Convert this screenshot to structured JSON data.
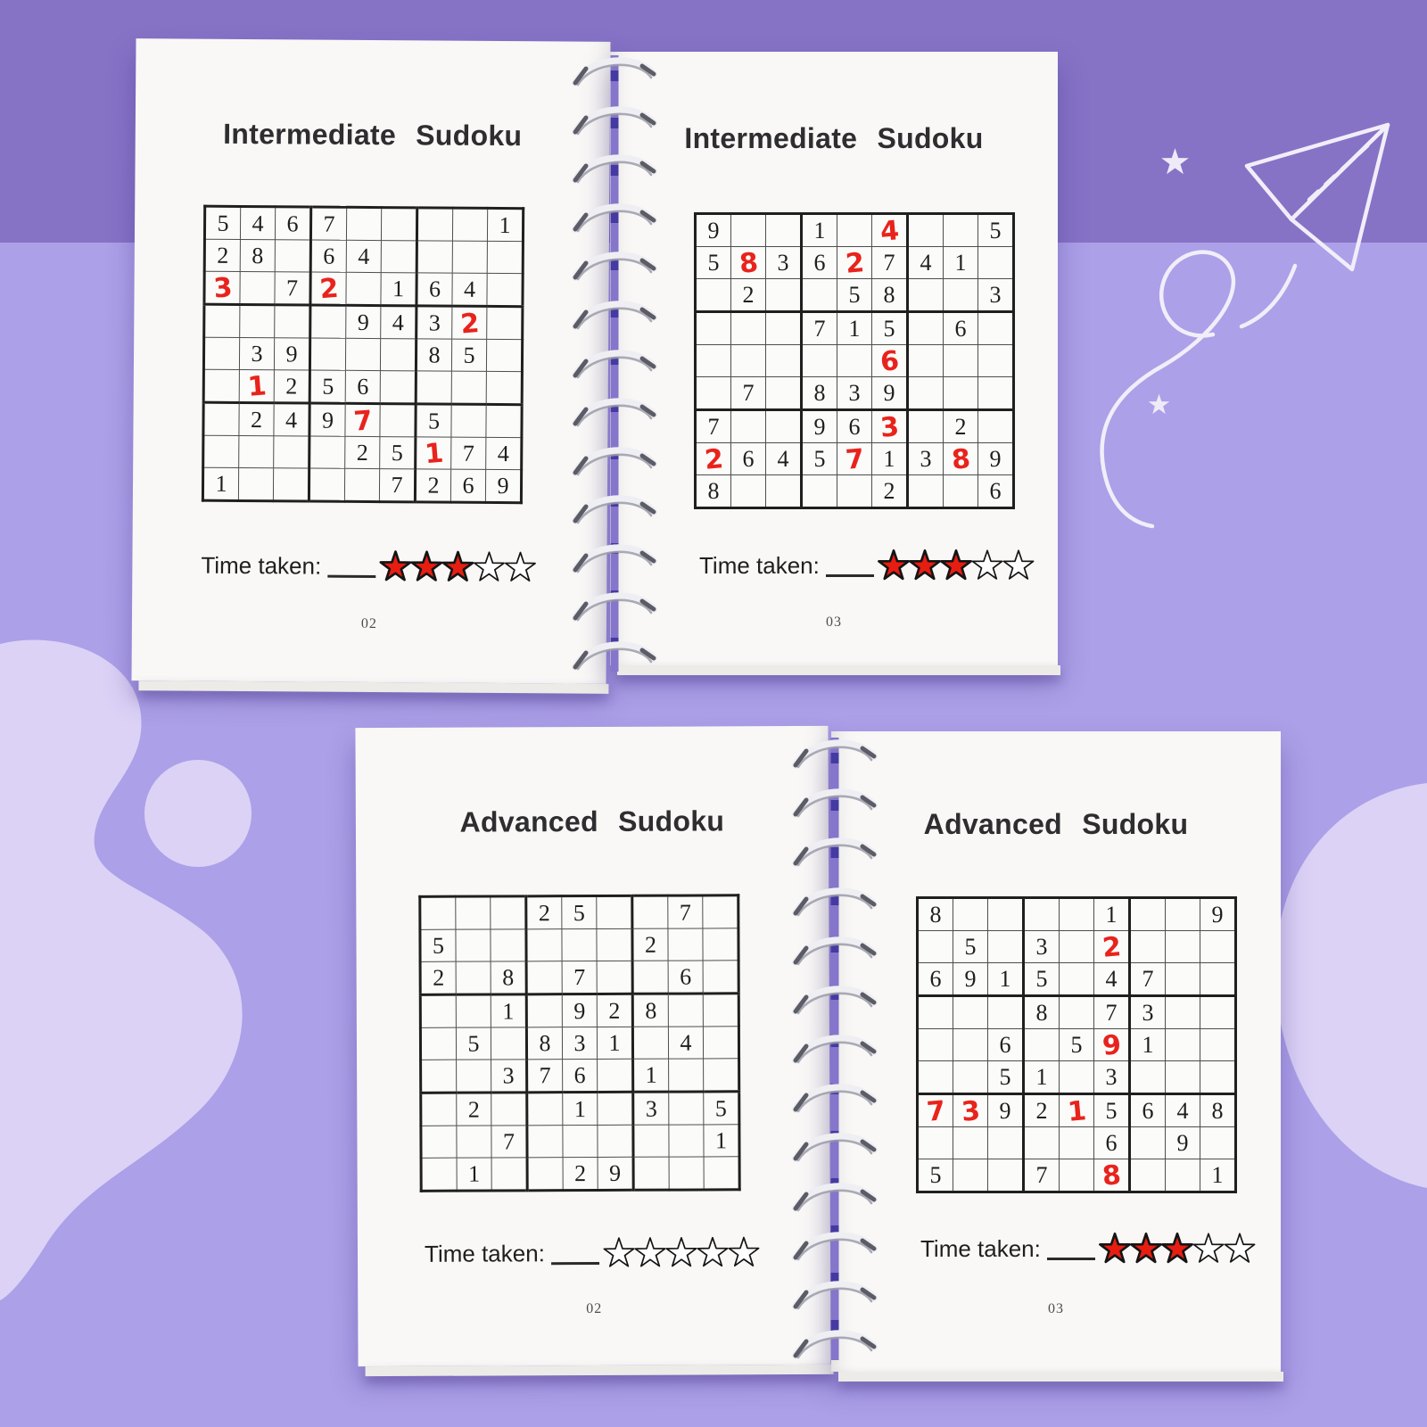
{
  "colors": {
    "background_top_band": "#8673c6",
    "background_main": "#aca0e8",
    "blob": "#dcd2f6",
    "page": "#f9f8f6",
    "grid_line_thin": "#4d4d4d",
    "grid_line_thick": "#1f1f1f",
    "printed_digit": "#1e1e1e",
    "handwritten_red": "#e8231c",
    "star_filled": "#e81d12",
    "star_outline": "#141414",
    "doodle": "#f2eef9"
  },
  "decor_icons": [
    "paper-plane-doodle",
    "swirl-trail-doodle",
    "sparkle-star-doodle",
    "blob-shape"
  ],
  "books": [
    {
      "name": "intermediate-sudoku-spread",
      "pages": [
        {
          "title": "Intermediate Sudoku",
          "page_number": "02",
          "time_label": "Time taken:",
          "stars_filled": 3,
          "stars_total": 5,
          "grid": [
            [
              "5",
              "4",
              "6",
              "7",
              "",
              "",
              "",
              "",
              "1"
            ],
            [
              "2",
              "8",
              "",
              "6",
              "4",
              "",
              "",
              "",
              ""
            ],
            [
              "3",
              "",
              "7",
              "2",
              "",
              "1",
              "6",
              "4",
              ""
            ],
            [
              "",
              "",
              "",
              "",
              "9",
              "4",
              "3",
              "2",
              ""
            ],
            [
              "",
              "3",
              "9",
              "",
              "",
              "",
              "8",
              "5",
              ""
            ],
            [
              "",
              "1",
              "2",
              "5",
              "6",
              "",
              "",
              "",
              ""
            ],
            [
              "",
              "2",
              "4",
              "9",
              "7",
              "",
              "5",
              "",
              ""
            ],
            [
              "",
              "",
              "",
              "",
              "2",
              "5",
              "1",
              "7",
              "4"
            ],
            [
              "1",
              "",
              "",
              "",
              "",
              "7",
              "2",
              "6",
              "9"
            ]
          ],
          "red_cells": [
            [
              2,
              0
            ],
            [
              2,
              3
            ],
            [
              3,
              7
            ],
            [
              5,
              1
            ],
            [
              6,
              4
            ],
            [
              7,
              6
            ]
          ]
        },
        {
          "title": "Intermediate Sudoku",
          "page_number": "03",
          "time_label": "Time taken:",
          "stars_filled": 3,
          "stars_total": 5,
          "grid": [
            [
              "9",
              "",
              "",
              "1",
              "",
              "4",
              "",
              "",
              "5"
            ],
            [
              "5",
              "8",
              "3",
              "6",
              "2",
              "7",
              "4",
              "1",
              ""
            ],
            [
              "",
              "2",
              "",
              "",
              "5",
              "8",
              "",
              "",
              "3"
            ],
            [
              "",
              "",
              "",
              "7",
              "1",
              "5",
              "",
              "6",
              ""
            ],
            [
              "",
              "",
              "",
              "",
              "",
              "6",
              "",
              "",
              ""
            ],
            [
              "",
              "7",
              "",
              "8",
              "3",
              "9",
              "",
              "",
              ""
            ],
            [
              "7",
              "",
              "",
              "9",
              "6",
              "3",
              "",
              "2",
              ""
            ],
            [
              "2",
              "6",
              "4",
              "5",
              "7",
              "1",
              "3",
              "8",
              "9"
            ],
            [
              "8",
              "",
              "",
              "",
              "",
              "2",
              "",
              "",
              "6"
            ]
          ],
          "red_cells": [
            [
              0,
              5
            ],
            [
              1,
              1
            ],
            [
              1,
              4
            ],
            [
              4,
              5
            ],
            [
              6,
              5
            ],
            [
              7,
              0
            ],
            [
              7,
              4
            ],
            [
              7,
              7
            ]
          ]
        }
      ]
    },
    {
      "name": "advanced-sudoku-spread",
      "pages": [
        {
          "title": "Advanced Sudoku",
          "page_number": "02",
          "time_label": "Time taken:",
          "stars_filled": 0,
          "stars_total": 5,
          "grid": [
            [
              "",
              "",
              "",
              "2",
              "5",
              "",
              "",
              "7",
              ""
            ],
            [
              "5",
              "",
              "",
              "",
              "",
              "",
              "2",
              "",
              ""
            ],
            [
              "2",
              "",
              "8",
              "",
              "7",
              "",
              "",
              "6",
              ""
            ],
            [
              "",
              "",
              "1",
              "",
              "9",
              "2",
              "8",
              "",
              ""
            ],
            [
              "",
              "5",
              "",
              "8",
              "3",
              "1",
              "",
              "4",
              ""
            ],
            [
              "",
              "",
              "3",
              "7",
              "6",
              "",
              "1",
              "",
              ""
            ],
            [
              "",
              "2",
              "",
              "",
              "1",
              "",
              "3",
              "",
              "5"
            ],
            [
              "",
              "",
              "7",
              "",
              "",
              "",
              "",
              "",
              "1"
            ],
            [
              "",
              "1",
              "",
              "",
              "2",
              "9",
              "",
              "",
              ""
            ]
          ],
          "red_cells": []
        },
        {
          "title": "Advanced Sudoku",
          "page_number": "03",
          "time_label": "Time taken:",
          "stars_filled": 3,
          "stars_total": 5,
          "grid": [
            [
              "8",
              "",
              "",
              "",
              "",
              "1",
              "",
              "",
              "9"
            ],
            [
              "",
              "5",
              "",
              "3",
              "",
              "2",
              "",
              "",
              ""
            ],
            [
              "6",
              "9",
              "1",
              "5",
              "",
              "4",
              "7",
              "",
              ""
            ],
            [
              "",
              "",
              "",
              "8",
              "",
              "7",
              "3",
              "",
              ""
            ],
            [
              "",
              "",
              "6",
              "",
              "5",
              "9",
              "1",
              "",
              ""
            ],
            [
              "",
              "",
              "5",
              "1",
              "",
              "3",
              "",
              "",
              ""
            ],
            [
              "7",
              "3",
              "9",
              "2",
              "1",
              "5",
              "6",
              "4",
              "8"
            ],
            [
              "",
              "",
              "",
              "",
              "",
              "6",
              "",
              "9",
              ""
            ],
            [
              "5",
              "",
              "",
              "7",
              "",
              "8",
              "",
              "",
              "1"
            ]
          ],
          "red_cells": [
            [
              1,
              5
            ],
            [
              4,
              5
            ],
            [
              6,
              0
            ],
            [
              6,
              1
            ],
            [
              6,
              4
            ],
            [
              8,
              5
            ]
          ]
        }
      ]
    }
  ]
}
